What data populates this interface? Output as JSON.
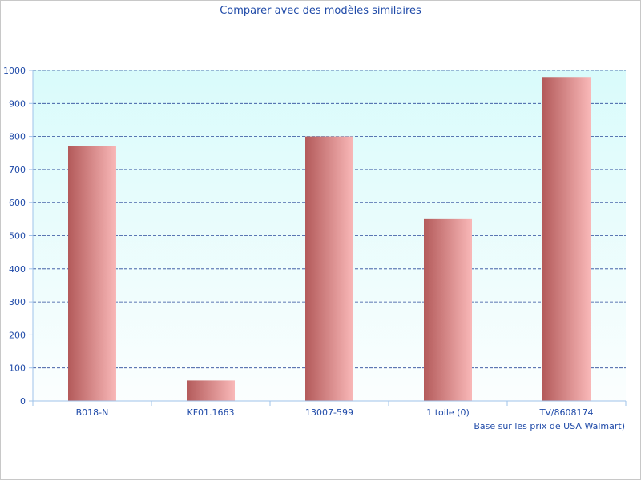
{
  "chart_data": {
    "type": "bar",
    "title": "Comparer avec des modèles similaires",
    "categories": [
      "B018-N",
      "KF01.1663",
      "13007-599",
      "1 toile (0)",
      "TV/8608174"
    ],
    "values": [
      770,
      62,
      800,
      550,
      980
    ],
    "ylim": [
      0,
      1000
    ],
    "yticks": [
      0,
      100,
      200,
      300,
      400,
      500,
      600,
      700,
      800,
      900,
      1000
    ],
    "grid": true,
    "note": "Base sur les prix de USA Walmart)",
    "colors": {
      "plot_bg_top": "#d9fbfb",
      "plot_bg_bottom": "#fbfefe",
      "bar_dark": "#b35a5a",
      "bar_light": "#f9b8b8",
      "grid": "#2b4a9a",
      "axis": "#9fc3ea",
      "text": "#1f4aa8"
    }
  }
}
